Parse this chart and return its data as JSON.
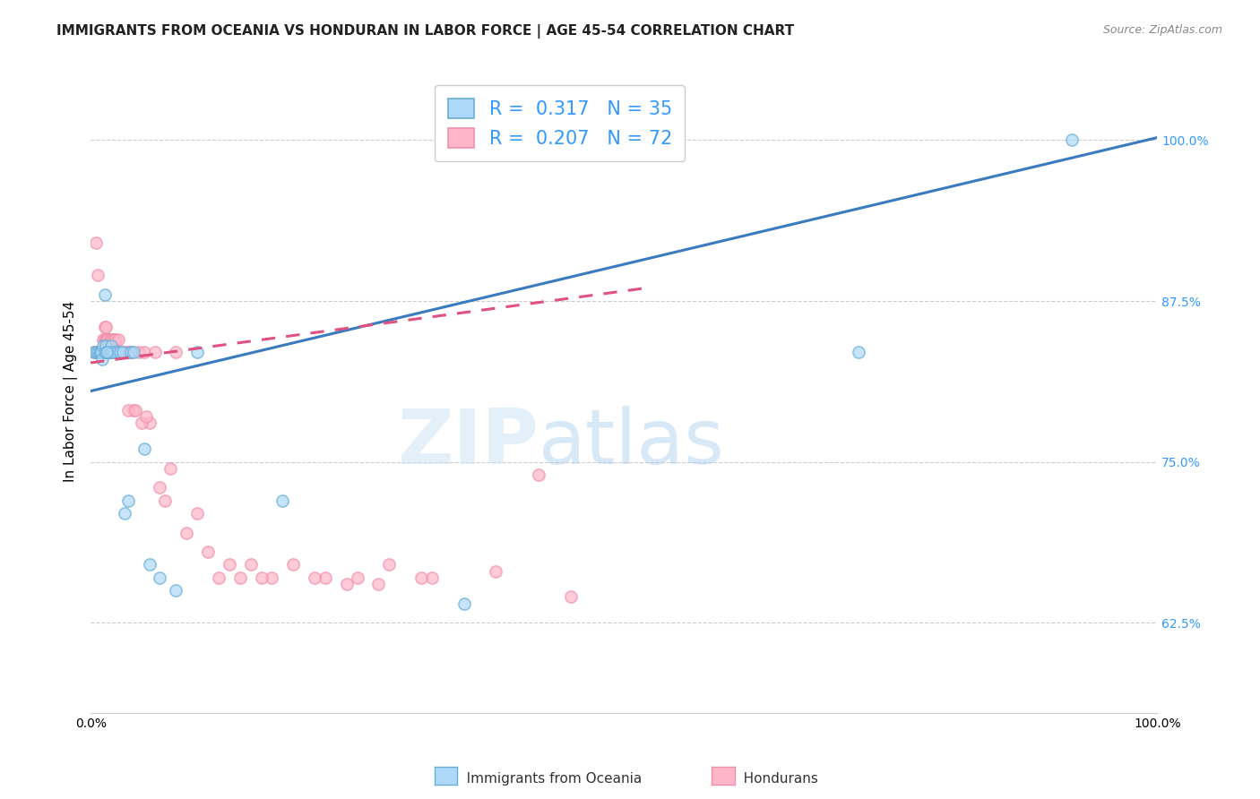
{
  "title": "IMMIGRANTS FROM OCEANIA VS HONDURAN IN LABOR FORCE | AGE 45-54 CORRELATION CHART",
  "source": "Source: ZipAtlas.com",
  "ylabel": "In Labor Force | Age 45-54",
  "xlim": [
    0.0,
    1.0
  ],
  "ylim": [
    0.555,
    1.055
  ],
  "yticks": [
    0.625,
    0.75,
    0.875,
    1.0
  ],
  "ytick_labels": [
    "62.5%",
    "75.0%",
    "87.5%",
    "100.0%"
  ],
  "xtick_labels": [
    "0.0%",
    "100.0%"
  ],
  "blue_R": 0.317,
  "blue_N": 35,
  "pink_R": 0.207,
  "pink_N": 72,
  "blue_color": "#add8f7",
  "pink_color": "#ffb6c8",
  "blue_edge_color": "#6aafd6",
  "pink_edge_color": "#f090aa",
  "blue_line_color": "#3a7abf",
  "pink_line_color": "#e05080",
  "scatter_alpha": 0.7,
  "scatter_size": 90,
  "blue_scatter_x": [
    0.003,
    0.005,
    0.007,
    0.008,
    0.009,
    0.01,
    0.011,
    0.012,
    0.013,
    0.013,
    0.014,
    0.015,
    0.016,
    0.017,
    0.018,
    0.019,
    0.02,
    0.022,
    0.025,
    0.028,
    0.03,
    0.032,
    0.035,
    0.038,
    0.04,
    0.05,
    0.055,
    0.065,
    0.08,
    0.1,
    0.18,
    0.35,
    0.72,
    0.92,
    0.015
  ],
  "blue_scatter_y": [
    0.835,
    0.835,
    0.835,
    0.835,
    0.835,
    0.835,
    0.83,
    0.84,
    0.835,
    0.88,
    0.84,
    0.835,
    0.835,
    0.835,
    0.835,
    0.84,
    0.835,
    0.835,
    0.835,
    0.835,
    0.835,
    0.71,
    0.72,
    0.835,
    0.835,
    0.76,
    0.67,
    0.66,
    0.65,
    0.835,
    0.72,
    0.64,
    0.835,
    1.0,
    0.835
  ],
  "pink_scatter_x": [
    0.003,
    0.005,
    0.006,
    0.007,
    0.008,
    0.009,
    0.01,
    0.011,
    0.012,
    0.012,
    0.013,
    0.013,
    0.014,
    0.014,
    0.015,
    0.015,
    0.016,
    0.016,
    0.017,
    0.017,
    0.018,
    0.018,
    0.019,
    0.019,
    0.02,
    0.021,
    0.022,
    0.023,
    0.024,
    0.025,
    0.026,
    0.027,
    0.028,
    0.03,
    0.032,
    0.034,
    0.036,
    0.038,
    0.04,
    0.045,
    0.05,
    0.055,
    0.06,
    0.065,
    0.07,
    0.075,
    0.08,
    0.09,
    0.1,
    0.11,
    0.12,
    0.13,
    0.15,
    0.17,
    0.19,
    0.22,
    0.25,
    0.28,
    0.32,
    0.38,
    0.42,
    0.45,
    0.14,
    0.16,
    0.21,
    0.24,
    0.27,
    0.31,
    0.035,
    0.042,
    0.048,
    0.052
  ],
  "pink_scatter_y": [
    0.835,
    0.92,
    0.835,
    0.895,
    0.835,
    0.835,
    0.835,
    0.835,
    0.845,
    0.835,
    0.855,
    0.845,
    0.845,
    0.855,
    0.845,
    0.845,
    0.845,
    0.835,
    0.835,
    0.835,
    0.845,
    0.835,
    0.845,
    0.835,
    0.835,
    0.845,
    0.845,
    0.845,
    0.835,
    0.835,
    0.845,
    0.835,
    0.835,
    0.835,
    0.835,
    0.835,
    0.835,
    0.835,
    0.79,
    0.835,
    0.835,
    0.78,
    0.835,
    0.73,
    0.72,
    0.745,
    0.835,
    0.695,
    0.71,
    0.68,
    0.66,
    0.67,
    0.67,
    0.66,
    0.67,
    0.66,
    0.66,
    0.67,
    0.66,
    0.665,
    0.74,
    0.645,
    0.66,
    0.66,
    0.66,
    0.655,
    0.655,
    0.66,
    0.79,
    0.79,
    0.78,
    0.785
  ],
  "blue_trend_start_x": 0.0,
  "blue_trend_end_x": 1.0,
  "blue_trend_start_y": 0.805,
  "blue_trend_end_y": 1.002,
  "pink_trend_start_x": 0.0,
  "pink_trend_end_x": 0.52,
  "pink_trend_start_y": 0.827,
  "pink_trend_end_y": 0.885,
  "grid_color": "#cccccc",
  "background_color": "#ffffff",
  "title_fontsize": 11,
  "axis_label_fontsize": 11,
  "tick_fontsize": 10,
  "legend_label_blue": "Immigrants from Oceania",
  "legend_label_pink": "Hondurans"
}
